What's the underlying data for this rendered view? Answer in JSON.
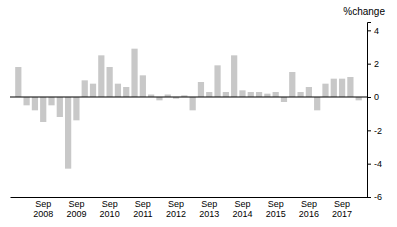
{
  "chart_data": {
    "type": "bar",
    "title": "%change",
    "categories": [
      null,
      null,
      null,
      "Sep\n2008",
      null,
      null,
      null,
      "Sep\n2009",
      null,
      null,
      null,
      "Sep\n2010",
      null,
      null,
      null,
      "Sep\n2011",
      null,
      null,
      null,
      "Sep\n2012",
      null,
      null,
      null,
      "Sep\n2013",
      null,
      null,
      null,
      "Sep\n2014",
      null,
      null,
      null,
      "Sep\n2015",
      null,
      null,
      null,
      "Sep\n2016",
      null,
      null,
      null,
      "Sep\n2017",
      null,
      null
    ],
    "values": [
      1.8,
      -0.5,
      -0.8,
      -1.5,
      -0.5,
      -1.2,
      -4.3,
      -1.4,
      1.0,
      0.8,
      2.5,
      1.8,
      0.8,
      0.6,
      2.9,
      1.3,
      0.15,
      -0.2,
      0.15,
      -0.1,
      0.1,
      -0.8,
      0.9,
      0.3,
      1.9,
      0.3,
      2.5,
      0.4,
      0.3,
      0.3,
      0.2,
      0.3,
      -0.3,
      1.5,
      0.3,
      0.6,
      -0.8,
      0.8,
      1.1,
      1.1,
      1.2,
      -0.2
    ],
    "color": "#c8c8c8",
    "ylim": [
      -6,
      4.5
    ],
    "yticks": [
      -6,
      -4,
      -2,
      0,
      2,
      4
    ],
    "grid": false
  }
}
